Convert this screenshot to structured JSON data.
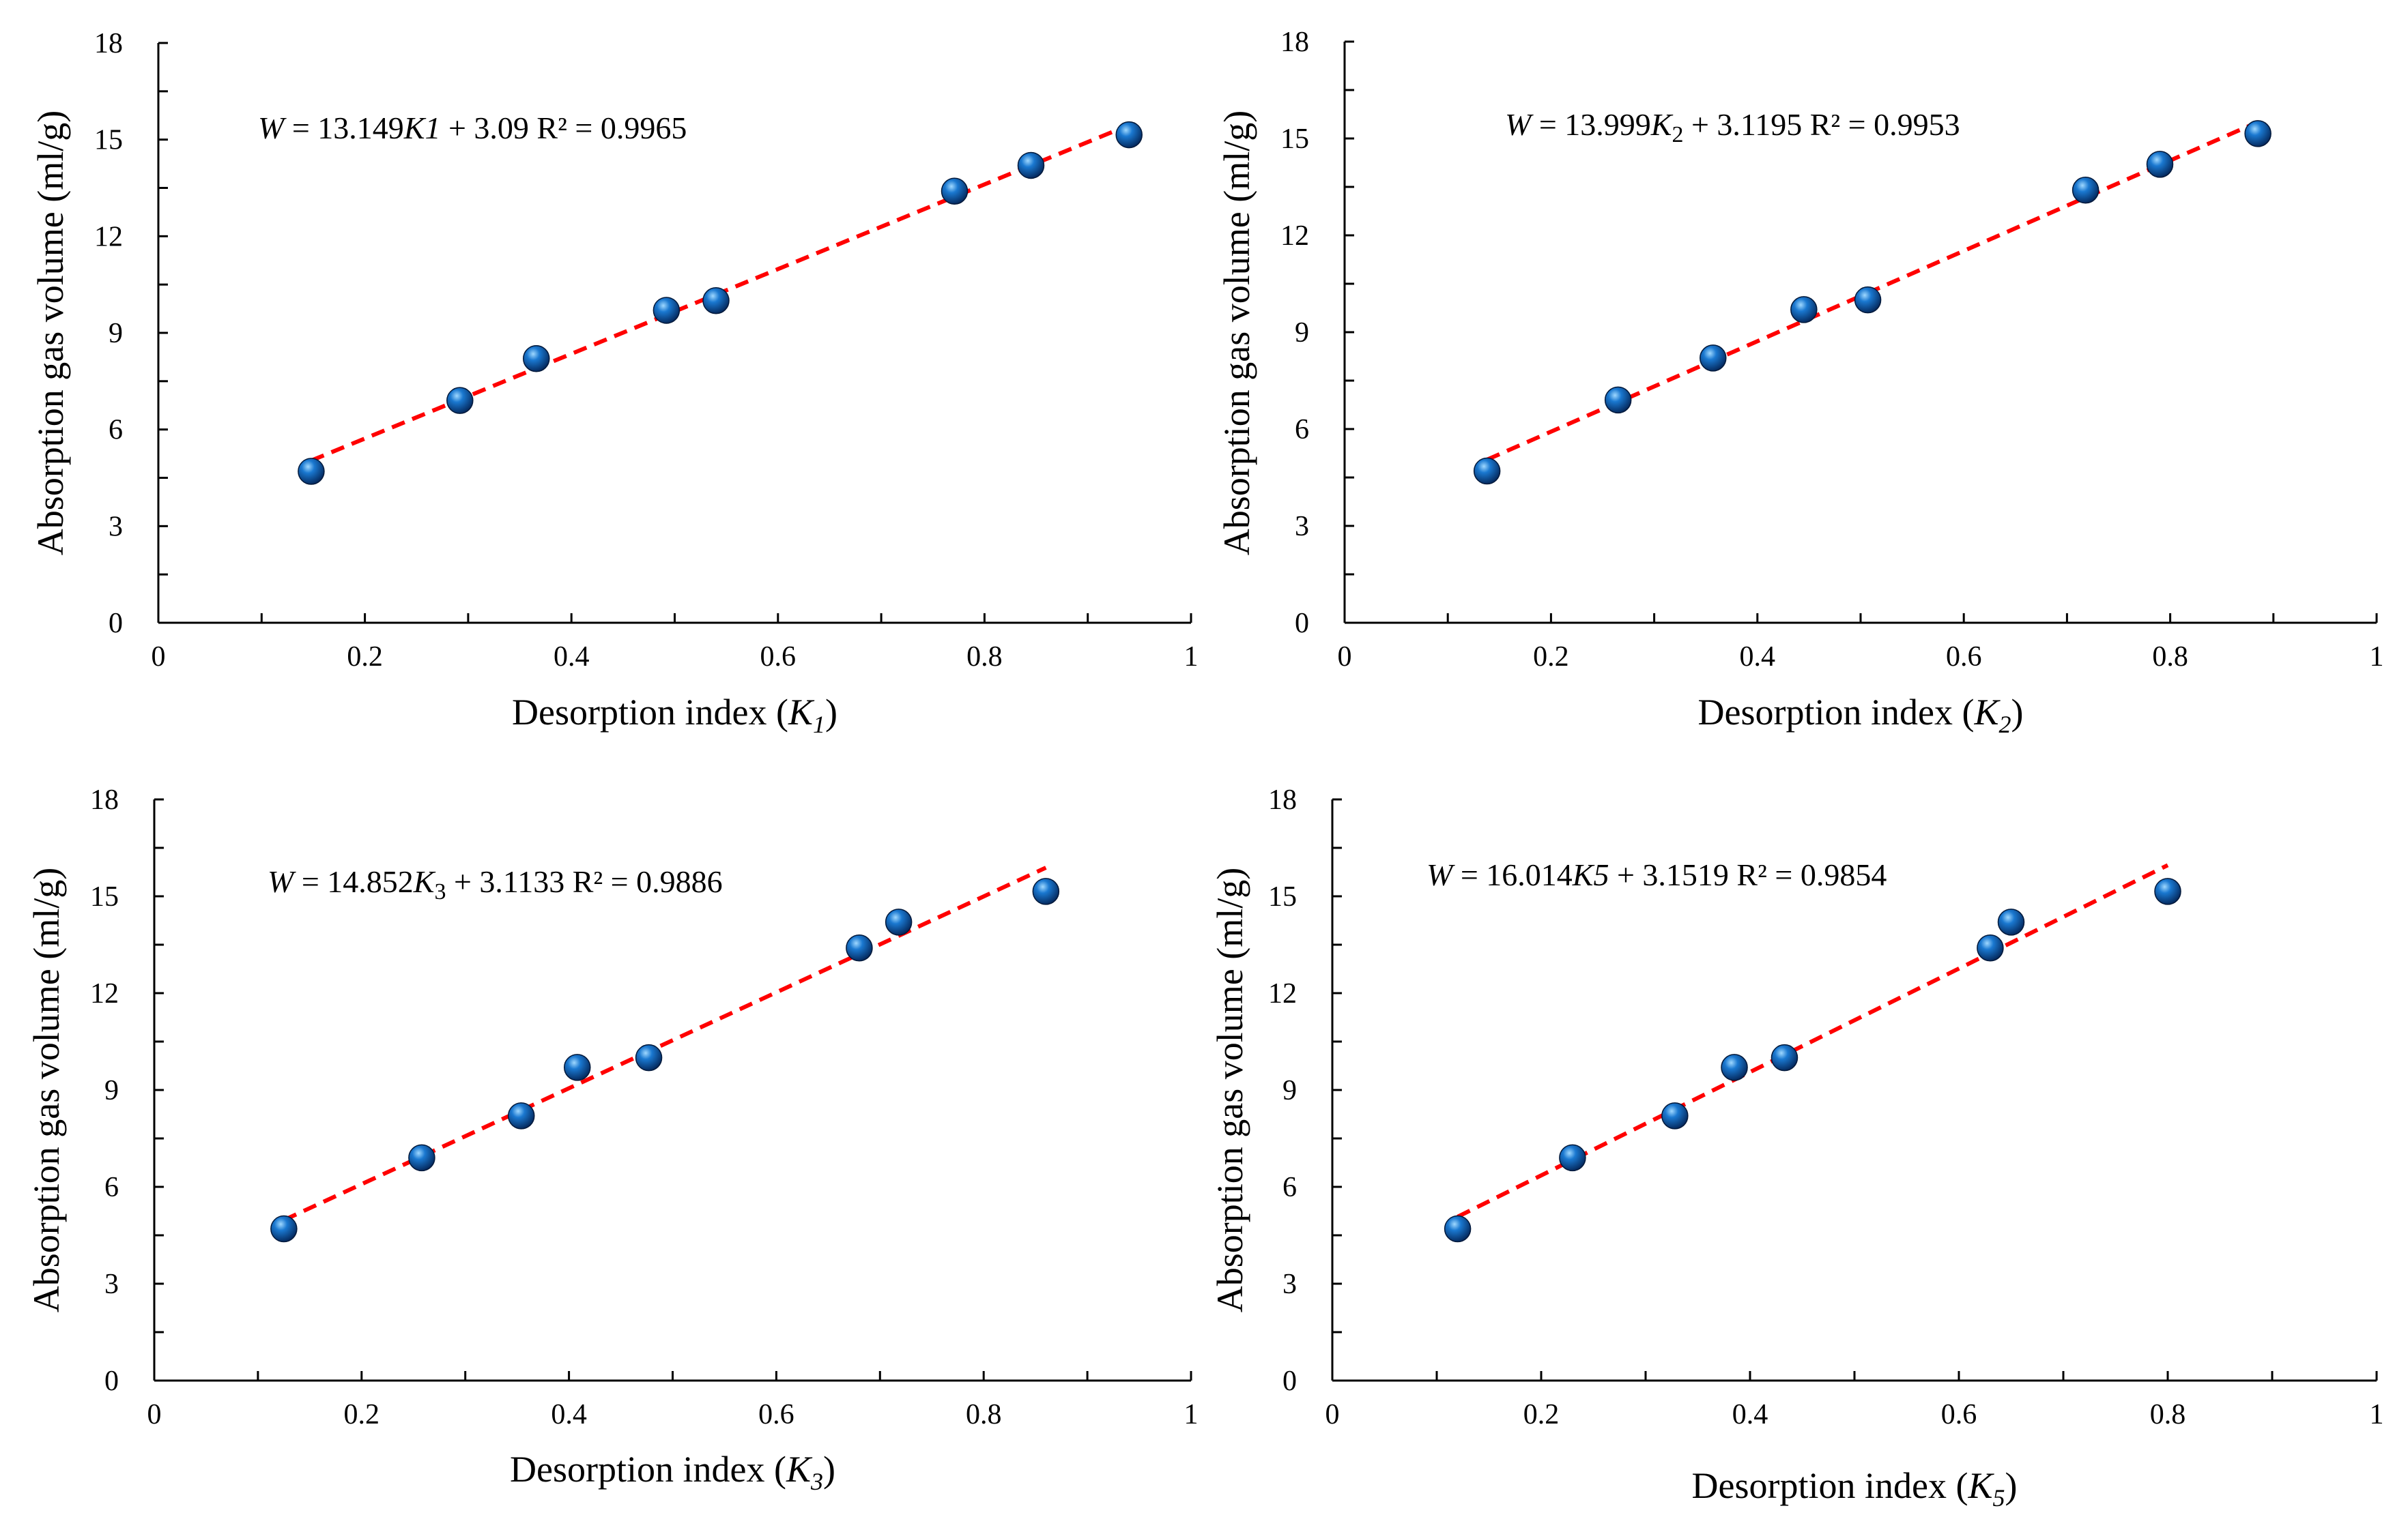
{
  "chart_data": [
    {
      "type": "scatter",
      "ylabel": "Absorption gas volume (ml/g)",
      "xlabel_prefix": "Desorption index (",
      "xlabel_var": "K",
      "xlabel_sub": "1",
      "xlabel_suffix": ")",
      "xlim": [
        0,
        1
      ],
      "ylim": [
        0,
        18
      ],
      "xticks": [
        "0",
        "0.2",
        "0.4",
        "0.6",
        "0.8",
        "1"
      ],
      "yticks": [
        "0",
        "3",
        "6",
        "9",
        "12",
        "15",
        "18"
      ],
      "x": [
        0.148,
        0.292,
        0.366,
        0.492,
        0.54,
        0.771,
        0.845,
        0.94
      ],
      "y": [
        4.7,
        6.9,
        8.2,
        9.7,
        10.0,
        13.4,
        14.2,
        15.15
      ],
      "trendline": {
        "slope": 13.149,
        "intercept": 3.09,
        "x_range": [
          0.148,
          0.94
        ]
      },
      "equation": {
        "lhs": "W",
        "mid": " = 13.149",
        "var": "K",
        "sub": "1",
        "sub_style": "italic",
        "rest": " + 3.09  R² = 0.9965"
      }
    },
    {
      "type": "scatter",
      "ylabel": "Absorption gas volume (ml/g)",
      "xlabel_prefix": "Desorption index (",
      "xlabel_var": "K",
      "xlabel_sub": "2",
      "xlabel_suffix": ")",
      "xlim": [
        0,
        1
      ],
      "ylim": [
        0,
        18
      ],
      "xticks": [
        "0",
        "0.2",
        "0.4",
        "0.6",
        "0.8",
        "1"
      ],
      "yticks": [
        "0",
        "3",
        "6",
        "9",
        "12",
        "15",
        "18"
      ],
      "x": [
        0.138,
        0.265,
        0.357,
        0.445,
        0.507,
        0.718,
        0.79,
        0.885
      ],
      "y": [
        4.7,
        6.9,
        8.2,
        9.7,
        10.0,
        13.4,
        14.2,
        15.15
      ],
      "trendline": {
        "slope": 13.999,
        "intercept": 3.1195,
        "x_range": [
          0.138,
          0.885
        ]
      },
      "equation": {
        "lhs": "W",
        "mid": " = 13.999",
        "var": "K",
        "sub": "2",
        "sub_style": "normal",
        "rest": " + 3.1195  R² = 0.9953"
      }
    },
    {
      "type": "scatter",
      "ylabel": "Absorption gas volume (ml/g)",
      "xlabel_prefix": "Desorption index (",
      "xlabel_var": "K",
      "xlabel_sub": "3",
      "xlabel_suffix": ")",
      "xlim": [
        0,
        1
      ],
      "ylim": [
        0,
        18
      ],
      "xticks": [
        "0",
        "0.2",
        "0.4",
        "0.6",
        "0.8",
        "1"
      ],
      "yticks": [
        "0",
        "3",
        "6",
        "9",
        "12",
        "15",
        "18"
      ],
      "x": [
        0.125,
        0.258,
        0.354,
        0.408,
        0.477,
        0.68,
        0.718,
        0.86
      ],
      "y": [
        4.7,
        6.9,
        8.2,
        9.7,
        10.0,
        13.4,
        14.2,
        15.15
      ],
      "trendline": {
        "slope": 14.852,
        "intercept": 3.1133,
        "x_range": [
          0.125,
          0.86
        ]
      },
      "equation": {
        "lhs": "W",
        "mid": " = 14.852",
        "var": "K",
        "sub": "3",
        "sub_style": "normal",
        "rest": " + 3.1133  R² = 0.9886"
      }
    },
    {
      "type": "scatter",
      "ylabel": "Absorption gas volume (ml/g)",
      "xlabel_prefix": "Desorption index (",
      "xlabel_var": "K",
      "xlabel_sub": "5",
      "xlabel_suffix": ")",
      "xlim": [
        0,
        1
      ],
      "ylim": [
        0,
        18
      ],
      "xticks": [
        "0",
        "0.2",
        "0.4",
        "0.6",
        "0.8",
        "1"
      ],
      "yticks": [
        "0",
        "3",
        "6",
        "9",
        "12",
        "15",
        "18"
      ],
      "x": [
        0.12,
        0.23,
        0.328,
        0.385,
        0.433,
        0.63,
        0.65,
        0.8
      ],
      "y": [
        4.7,
        6.9,
        8.2,
        9.7,
        10.0,
        13.4,
        14.2,
        15.15
      ],
      "trendline": {
        "slope": 16.014,
        "intercept": 3.1519,
        "x_range": [
          0.12,
          0.8
        ]
      },
      "equation": {
        "lhs": "W",
        "mid": " = 16.014",
        "var": "K",
        "sub": "5",
        "sub_style": "italic",
        "rest": " + 3.1519  R² = 0.9854"
      }
    }
  ],
  "colors": {
    "point_highlight": "#9fd8ff",
    "point_mid": "#1a78d0",
    "point_dark": "#04285c",
    "trendline": "#ff0000",
    "axis": "#000000"
  }
}
